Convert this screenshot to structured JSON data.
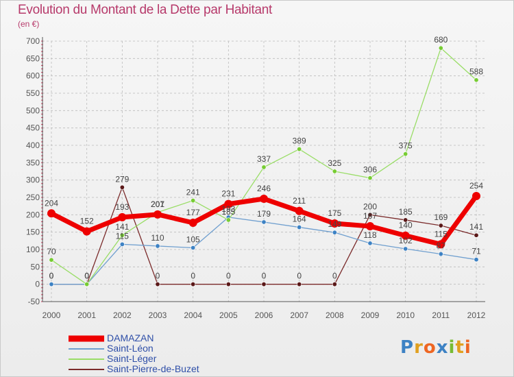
{
  "header": {
    "title": "Evolution du Montant de la Dette par Habitant",
    "unit": "(en €)"
  },
  "brand": {
    "text": "Proxiti"
  },
  "colors": {
    "title": "#b73a6b",
    "legend_text": "#2f4fa8",
    "grid": "#bbbbbb",
    "axis": "#555555"
  },
  "chart_data": {
    "type": "line",
    "title": "Evolution du Montant de la Dette par Habitant",
    "subtitle": "(en €)",
    "xlabel": "",
    "ylabel": "",
    "x": [
      "2000",
      "2001",
      "2002",
      "2003",
      "2004",
      "2005",
      "2006",
      "2007",
      "2008",
      "2009",
      "2010",
      "2011",
      "2012"
    ],
    "ylim": [
      -50,
      700
    ],
    "yticks": [
      -50,
      0,
      50,
      100,
      150,
      200,
      250,
      300,
      350,
      400,
      450,
      500,
      550,
      600,
      650,
      700
    ],
    "grid": true,
    "legend_position": "bottom-left",
    "series": [
      {
        "name": "DAMAZAN",
        "color": "#ee0000",
        "point_color": "#ee0000",
        "width": 7,
        "values": [
          204,
          152,
          193,
          201,
          177,
          231,
          246,
          211,
          175,
          167,
          140,
          115,
          254
        ],
        "labels": [
          "204",
          "152",
          "193",
          "201",
          "177",
          "231",
          "246",
          "211",
          "175",
          "167",
          "140",
          "115",
          "254"
        ]
      },
      {
        "name": "Saint-Léon",
        "color": "#6f9fcf",
        "point_color": "#3d82c4",
        "width": 1.3,
        "values": [
          0,
          0,
          115,
          110,
          105,
          193,
          179,
          164,
          149,
          118,
          102,
          87,
          71
        ],
        "labels": [
          "0",
          "0",
          "115",
          "110",
          "105",
          "193",
          "179",
          "164",
          "149",
          "118",
          "102",
          "87",
          "71"
        ]
      },
      {
        "name": "Saint-Léger",
        "color": "#99dd66",
        "point_color": "#77cc33",
        "width": 1.3,
        "values": [
          70,
          0,
          141,
          207,
          241,
          185,
          337,
          389,
          325,
          306,
          375,
          680,
          588
        ],
        "labels": [
          "70",
          "0",
          "141",
          "207",
          "241",
          "185",
          "337",
          "389",
          "325",
          "306",
          "375",
          "680",
          "588"
        ]
      },
      {
        "name": "Saint-Pierre-de-Buzet",
        "color": "#7a2a2a",
        "point_color": "#5a1818",
        "width": 1.3,
        "values": [
          0,
          0,
          279,
          0,
          0,
          0,
          0,
          0,
          0,
          200,
          185,
          169,
          141
        ],
        "labels": [
          "0",
          "0",
          "279",
          "0",
          "0",
          "0",
          "0",
          "0",
          "0",
          "200",
          "185",
          "169",
          "141"
        ]
      }
    ]
  }
}
